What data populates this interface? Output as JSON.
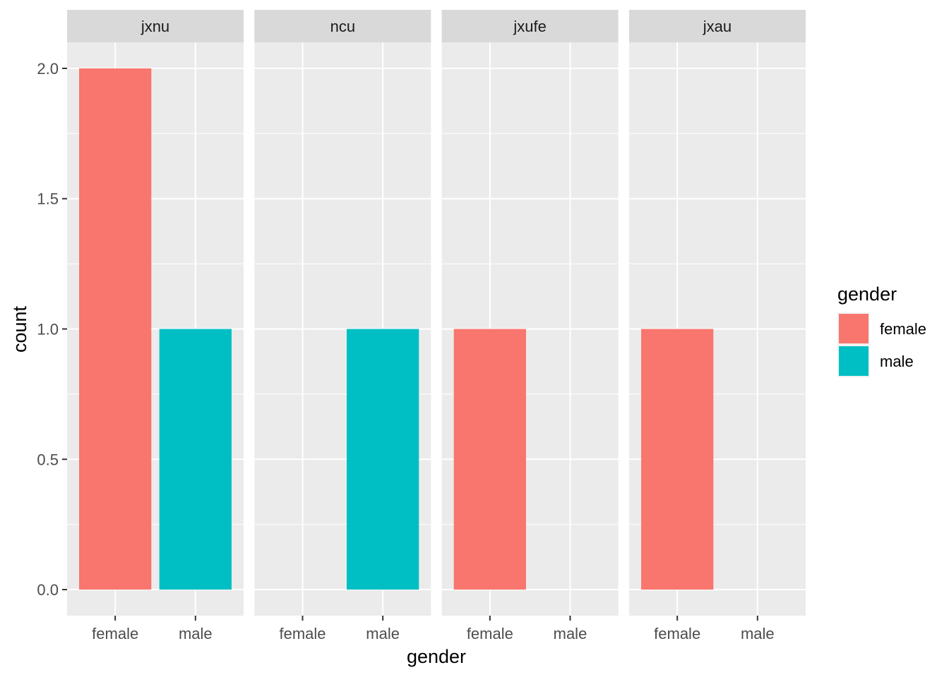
{
  "chart_data": {
    "type": "bar",
    "facet_by": "school",
    "facets": [
      {
        "name": "jxnu",
        "values": {
          "female": 2,
          "male": 1
        }
      },
      {
        "name": "ncu",
        "values": {
          "female": 0,
          "male": 1
        }
      },
      {
        "name": "jxufe",
        "values": {
          "female": 1,
          "male": 0
        }
      },
      {
        "name": "jxau",
        "values": {
          "female": 1,
          "male": 0
        }
      }
    ],
    "categories": [
      "female",
      "male"
    ],
    "xlabel": "gender",
    "ylabel": "count",
    "ylim": [
      -0.1,
      2.1
    ],
    "yticks": [
      0.0,
      0.5,
      1.0,
      1.5,
      2.0
    ],
    "ytick_labels": [
      "0.0",
      "0.5",
      "1.0",
      "1.5",
      "2.0"
    ],
    "grid": true,
    "legend": {
      "title": "gender",
      "position": "right",
      "entries": [
        {
          "label": "female",
          "color": "#F8766D"
        },
        {
          "label": "male",
          "color": "#00BFC4"
        }
      ]
    },
    "colors": {
      "female": "#F8766D",
      "male": "#00BFC4"
    }
  }
}
